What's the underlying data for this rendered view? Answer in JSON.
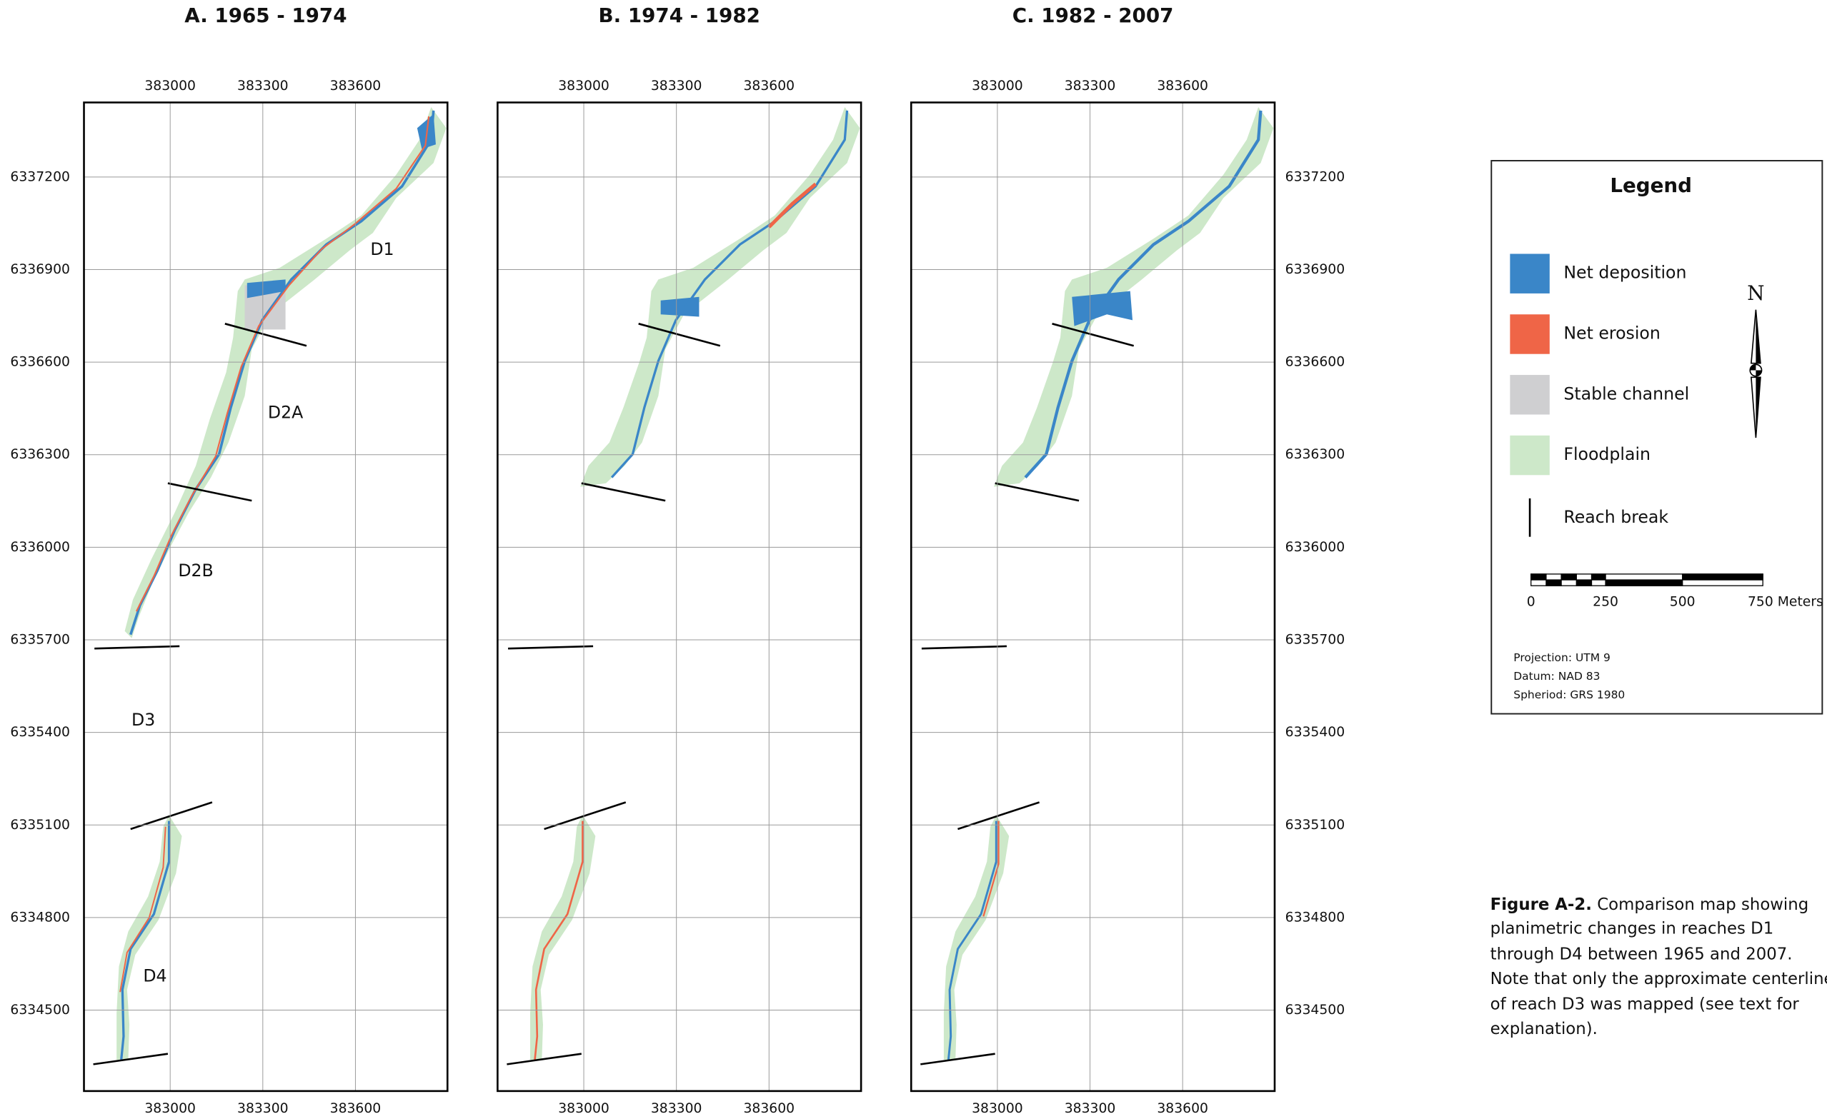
{
  "panels": [
    {
      "title": "A. 1965 - 1974"
    },
    {
      "title": "B. 1974 - 1982"
    },
    {
      "title": "C. 1982 - 2007"
    }
  ],
  "x_ticks": [
    383000,
    383300,
    383600
  ],
  "y_ticks": [
    6337200,
    6336900,
    6336600,
    6336300,
    6336000,
    6335700,
    6335400,
    6335100,
    6334800,
    6334500
  ],
  "reach_labels": [
    "D1",
    "D2A",
    "D2B",
    "D3",
    "D4"
  ],
  "legend": {
    "title": "Legend",
    "items": [
      "Net deposition",
      "Net erosion",
      "Stable channel",
      "Floodplain",
      "Reach break"
    ]
  },
  "north": "N",
  "scale_bar": {
    "labels": [
      "0",
      "250",
      "500",
      "750 Meters"
    ]
  },
  "projection": [
    "Projection: UTM 9",
    "Datum: NAD 83",
    "Spheriod: GRS 1980"
  ],
  "caption": {
    "label": "Figure A-2.",
    "lines": [
      "Comparison map showing",
      "planimetric changes in reaches D1",
      "through D4 between 1965 and 2007.",
      "Note that only the approximate centerline",
      "of reach D3 was mapped (see text for",
      "explanation)."
    ]
  }
}
